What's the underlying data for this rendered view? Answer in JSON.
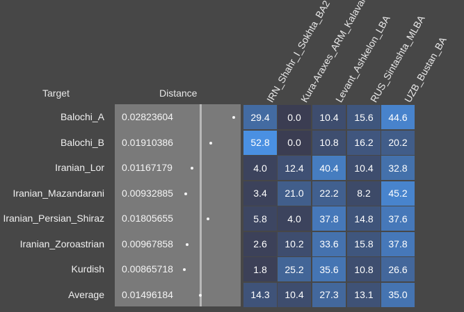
{
  "headers": {
    "target": "Target",
    "distance": "Distance"
  },
  "columns": [
    "IRN_Shahr_I_Sokhta_BA2",
    "Kura-Araxes_ARM_Kalavan",
    "Levant_Ashkelon_LBA",
    "RUS_Sintashta_MLBA",
    "UZB_Bustan_BA"
  ],
  "rows": [
    {
      "label": "Balochi_A",
      "distance": "0.02823604",
      "dist_value": 0.02823604,
      "cells": [
        "29.4",
        "0.0",
        "10.4",
        "15.6",
        "44.6"
      ]
    },
    {
      "label": "Balochi_B",
      "distance": "0.01910386",
      "dist_value": 0.01910386,
      "cells": [
        "52.8",
        "0.0",
        "10.8",
        "16.2",
        "20.2"
      ]
    },
    {
      "label": "Iranian_Lor",
      "distance": "0.01167179",
      "dist_value": 0.01167179,
      "cells": [
        "4.0",
        "12.4",
        "40.4",
        "10.4",
        "32.8"
      ]
    },
    {
      "label": "Iranian_Mazandarani",
      "distance": "0.00932885",
      "dist_value": 0.00932885,
      "cells": [
        "3.4",
        "21.0",
        "22.2",
        "8.2",
        "45.2"
      ]
    },
    {
      "label": "Iranian_Persian_Shiraz",
      "distance": "0.01805655",
      "dist_value": 0.01805655,
      "cells": [
        "5.8",
        "4.0",
        "37.8",
        "14.8",
        "37.6"
      ]
    },
    {
      "label": "Iranian_Zoroastrian",
      "distance": "0.00967858",
      "dist_value": 0.00967858,
      "cells": [
        "2.6",
        "10.2",
        "33.6",
        "15.8",
        "37.8"
      ]
    },
    {
      "label": "Kurdish",
      "distance": "0.00865718",
      "dist_value": 0.00865718,
      "cells": [
        "1.8",
        "25.2",
        "35.6",
        "10.8",
        "26.6"
      ]
    },
    {
      "label": "Average",
      "distance": "0.01496184",
      "dist_value": 0.01496184,
      "cells": [
        "14.3",
        "10.4",
        "27.3",
        "13.1",
        "35.0"
      ]
    }
  ],
  "colors": {
    "background": "#474747",
    "distance_panel": "#7a7a7a",
    "distance_line": "#b8b8b8",
    "heat_low": "#3b3d52",
    "heat_high": "#4a90e2"
  }
}
